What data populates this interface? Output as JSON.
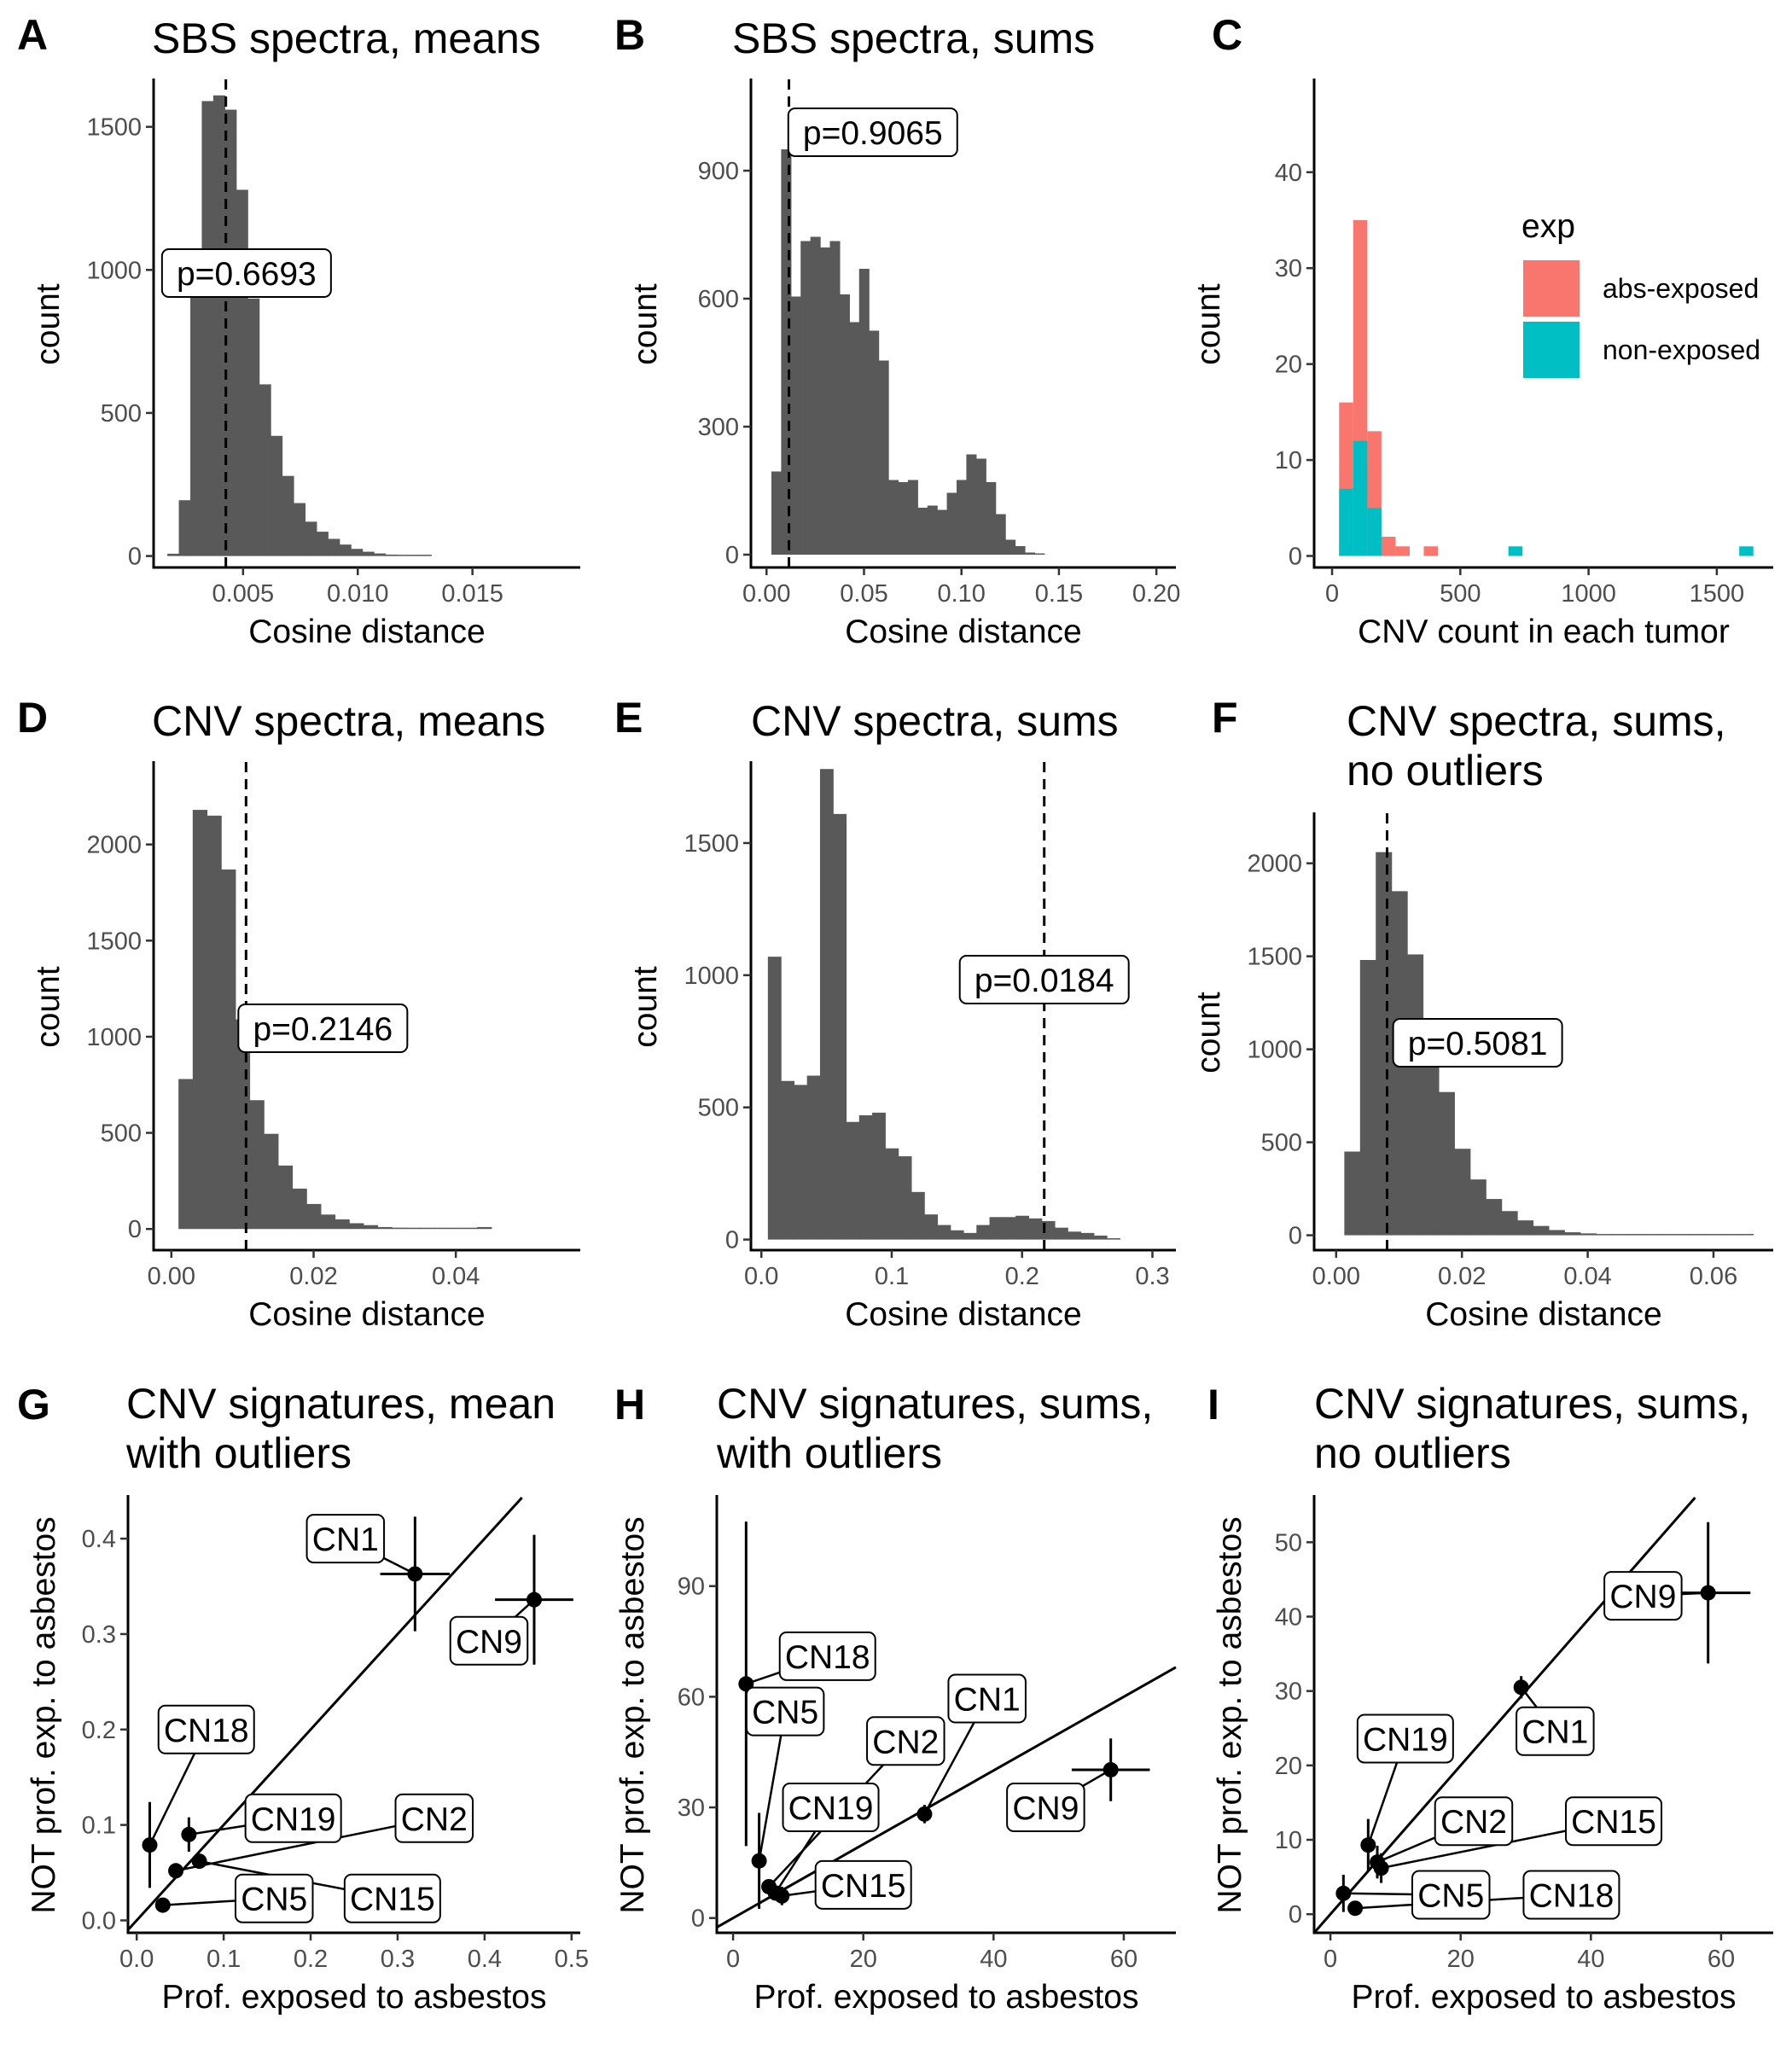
{
  "colors": {
    "bar": "#595959",
    "exposed": "#F8766D",
    "nonexposed": "#00BFC4",
    "axis": "#000000",
    "tick_text": "#4d4d4d"
  },
  "chart_data": [
    {
      "id": "A",
      "type": "bar",
      "label": "A",
      "title": [
        "SBS spectra, means"
      ],
      "xlabel": "Cosine distance",
      "ylabel": "count",
      "xlim": [
        0.0011,
        0.0197
      ],
      "ylim": [
        -40,
        1660
      ],
      "xticks": [
        0.005,
        0.01,
        0.015
      ],
      "xtick_labels": [
        "0.005",
        "0.010",
        "0.015"
      ],
      "yticks": [
        0,
        500,
        1000,
        1500
      ],
      "ytick_labels": [
        "0",
        "500",
        "1000",
        "1500"
      ],
      "bin_start": 0.0017,
      "bin_width": 0.0005,
      "values": [
        8,
        195,
        1020,
        1590,
        1610,
        1560,
        1280,
        900,
        600,
        420,
        280,
        185,
        120,
        85,
        60,
        40,
        25,
        15,
        9,
        5,
        3,
        2,
        1
      ],
      "vline": 0.00425,
      "pvalue_label": "p=0.6693",
      "pvalue_pos": [
        0.00515,
        1000
      ]
    },
    {
      "id": "B",
      "type": "bar",
      "label": "B",
      "title": [
        "SBS spectra, sums"
      ],
      "xlabel": "Cosine distance",
      "ylabel": "count",
      "xlim": [
        -0.008,
        0.21
      ],
      "ylim": [
        -30,
        1110
      ],
      "xticks": [
        0.0,
        0.05,
        0.1,
        0.15,
        0.2
      ],
      "xtick_labels": [
        "0.00",
        "0.05",
        "0.10",
        "0.15",
        "0.20"
      ],
      "yticks": [
        0,
        300,
        600,
        900
      ],
      "ytick_labels": [
        "0",
        "300",
        "600",
        "900"
      ],
      "bin_start": 0.0025,
      "bin_width": 0.005,
      "values": [
        195,
        950,
        605,
        735,
        745,
        720,
        735,
        610,
        545,
        670,
        525,
        455,
        175,
        170,
        175,
        110,
        115,
        105,
        145,
        175,
        235,
        225,
        170,
        95,
        35,
        20,
        5,
        2
      ],
      "vline": 0.0115,
      "pvalue_label": "p=0.9065",
      "pvalue_pos": [
        0.0545,
        1000
      ]
    },
    {
      "id": "C",
      "type": "bar",
      "label": "C",
      "title": [],
      "xlabel": "CNV count in each tumor",
      "ylabel": "count",
      "xlim": [
        -70,
        1720
      ],
      "ylim": [
        -1.2,
        49.5
      ],
      "xticks": [
        0,
        500,
        1000,
        1500
      ],
      "xtick_labels": [
        "0",
        "500",
        "1000",
        "1500"
      ],
      "yticks": [
        0,
        10,
        20,
        30,
        40
      ],
      "ytick_labels": [
        "0",
        "10",
        "20",
        "30",
        "40"
      ],
      "categories_x": [
        55,
        110,
        165,
        220,
        275,
        385,
        715,
        1615
      ],
      "bin_width": 55,
      "series": [
        {
          "name": "abs-exposed",
          "values": [
            16,
            35,
            13,
            2,
            1,
            1,
            0,
            0
          ]
        },
        {
          "name": "non-exposed",
          "values": [
            7,
            12,
            5,
            0,
            0,
            0,
            1,
            1
          ]
        }
      ],
      "legend": {
        "title": "exp",
        "position": "right"
      }
    },
    {
      "id": "D",
      "type": "bar",
      "label": "D",
      "title": [
        "CNV spectra, means"
      ],
      "xlabel": "Cosine distance",
      "ylabel": "count",
      "xlim": [
        -0.0025,
        0.0575
      ],
      "ylim": [
        -110,
        2420
      ],
      "xticks": [
        0.0,
        0.02,
        0.04
      ],
      "xtick_labels": [
        "0.00",
        "0.02",
        "0.04"
      ],
      "yticks": [
        0,
        500,
        1000,
        1500,
        2000
      ],
      "ytick_labels": [
        "0",
        "500",
        "1000",
        "1500",
        "2000"
      ],
      "bin_start": 0.001,
      "bin_width": 0.002,
      "values": [
        780,
        2180,
        2150,
        1870,
        1090,
        670,
        495,
        330,
        210,
        130,
        75,
        50,
        30,
        20,
        10,
        7,
        5,
        3,
        2,
        1,
        1,
        10
      ],
      "vline": 0.0105,
      "pvalue_label": "p=0.2146",
      "pvalue_pos": [
        0.0213,
        1000
      ]
    },
    {
      "id": "E",
      "type": "bar",
      "label": "E",
      "title": [
        "CNV spectra, sums"
      ],
      "xlabel": "Cosine distance",
      "ylabel": "count",
      "xlim": [
        -0.008,
        0.318
      ],
      "ylim": [
        -40,
        1800
      ],
      "xticks": [
        0.0,
        0.1,
        0.2,
        0.3
      ],
      "xtick_labels": [
        "0.0",
        "0.1",
        "0.2",
        "0.3"
      ],
      "bin_start": 0.005,
      "bin_width": 0.01,
      "yticks": [
        0,
        500,
        1000,
        1500
      ],
      "ytick_labels": [
        "0",
        "500",
        "1000",
        "1500"
      ],
      "values": [
        1070,
        600,
        585,
        620,
        1780,
        1610,
        445,
        470,
        480,
        345,
        315,
        180,
        95,
        55,
        35,
        25,
        55,
        85,
        85,
        90,
        80,
        70,
        45,
        30,
        25,
        15,
        5
      ],
      "vline": 0.217,
      "pvalue_label": "p=0.0184",
      "pvalue_pos": [
        0.217,
        1000
      ]
    },
    {
      "id": "F",
      "type": "bar",
      "label": "F",
      "title": [
        "CNV spectra, sums,",
        "no outliers"
      ],
      "xlabel": "Cosine distance",
      "ylabel": "count",
      "xlim": [
        -0.0035,
        0.0695
      ],
      "ylim": [
        -80,
        2260
      ],
      "xticks": [
        0.0,
        0.02,
        0.04,
        0.06
      ],
      "xtick_labels": [
        "0.00",
        "0.02",
        "0.04",
        "0.06"
      ],
      "yticks": [
        0,
        500,
        1000,
        1500,
        2000
      ],
      "ytick_labels": [
        "0",
        "500",
        "1000",
        "1500",
        "2000"
      ],
      "bin_start": 0.0013,
      "bin_width": 0.0025,
      "values": [
        450,
        1480,
        2060,
        1850,
        1510,
        1120,
        770,
        465,
        300,
        195,
        130,
        80,
        50,
        28,
        16,
        10,
        6,
        4,
        2,
        1,
        1,
        0,
        1,
        1,
        1,
        1
      ],
      "vline": 0.0081,
      "pvalue_label": "p=0.5081",
      "pvalue_pos": [
        0.0225,
        1000
      ]
    },
    {
      "id": "G",
      "type": "scatter",
      "label": "G",
      "title": [
        "CNV signatures, mean",
        "with outliers"
      ],
      "xlabel": "Prof. exposed to asbestos",
      "ylabel": "NOT prof. exp. to asbestos",
      "xlim": [
        -0.01,
        0.51
      ],
      "ylim": [
        -0.013,
        0.443
      ],
      "xticks": [
        0.0,
        0.1,
        0.2,
        0.3,
        0.4,
        0.5
      ],
      "xtick_labels": [
        "0.0",
        "0.1",
        "0.2",
        "0.3",
        "0.4",
        "0.5"
      ],
      "yticks": [
        0.0,
        0.1,
        0.2,
        0.3,
        0.4
      ],
      "ytick_labels": [
        "0.0",
        "0.1",
        "0.2",
        "0.3",
        "0.4"
      ],
      "diagonal": true,
      "points": [
        {
          "name": "CN1",
          "x": 0.32,
          "y": 0.363,
          "xerr": 0.04,
          "yerr": 0.06,
          "label_pos": [
            0.24,
            0.4
          ]
        },
        {
          "name": "CN9",
          "x": 0.457,
          "y": 0.336,
          "xerr": 0.045,
          "yerr": 0.068,
          "label_pos": [
            0.405,
            0.293
          ]
        },
        {
          "name": "CN18",
          "x": 0.015,
          "y": 0.079,
          "xerr": 0.0,
          "yerr": 0.045,
          "label_pos": [
            0.08,
            0.2
          ]
        },
        {
          "name": "CN19",
          "x": 0.06,
          "y": 0.09,
          "xerr": 0.0,
          "yerr": 0.018,
          "label_pos": [
            0.18,
            0.107
          ]
        },
        {
          "name": "CN2",
          "x": 0.045,
          "y": 0.052,
          "xerr": 0.0,
          "yerr": 0.0,
          "label_pos": [
            0.342,
            0.107
          ]
        },
        {
          "name": "CN5",
          "x": 0.03,
          "y": 0.016,
          "xerr": 0.0,
          "yerr": 0.0,
          "label_pos": [
            0.158,
            0.023
          ]
        },
        {
          "name": "CN15",
          "x": 0.072,
          "y": 0.062,
          "xerr": 0.0,
          "yerr": 0.0,
          "label_pos": [
            0.294,
            0.023
          ]
        }
      ]
    },
    {
      "id": "H",
      "type": "scatter",
      "label": "H",
      "title": [
        "CNV signatures, sums,",
        "with outliers"
      ],
      "xlabel": "Prof. exposed to asbestos",
      "ylabel": "NOT prof. exp. to asbestos",
      "xlim": [
        -2.5,
        68
      ],
      "ylim": [
        -4,
        114
      ],
      "xticks": [
        0,
        20,
        40,
        60
      ],
      "xtick_labels": [
        "0",
        "20",
        "40",
        "60"
      ],
      "yticks": [
        0,
        30,
        60,
        90
      ],
      "ytick_labels": [
        "0",
        "30",
        "60",
        "90"
      ],
      "diagonal": true,
      "points": [
        {
          "name": "CN18",
          "x": 2.0,
          "y": 63.5,
          "xerr": 0.0,
          "yerr": 44,
          "label_pos": [
            14.5,
            71
          ]
        },
        {
          "name": "CN1",
          "x": 29.4,
          "y": 28.2,
          "xerr": 0.0,
          "yerr": 2.5,
          "label_pos": [
            39,
            59.5
          ]
        },
        {
          "name": "CN5",
          "x": 4.0,
          "y": 15.5,
          "xerr": 0.0,
          "yerr": 13,
          "label_pos": [
            8,
            56
          ]
        },
        {
          "name": "CN2",
          "x": 5.5,
          "y": 8.5,
          "xerr": 0.0,
          "yerr": 0.0,
          "label_pos": [
            26.5,
            48
          ]
        },
        {
          "name": "CN19",
          "x": 6.5,
          "y": 6.8,
          "xerr": 0.0,
          "yerr": 0.0,
          "label_pos": [
            15,
            30
          ]
        },
        {
          "name": "CN15",
          "x": 7.5,
          "y": 6.0,
          "xerr": 0.0,
          "yerr": 2.5,
          "label_pos": [
            20,
            9
          ]
        },
        {
          "name": "CN9",
          "x": 58.0,
          "y": 40.2,
          "xerr": 6.0,
          "yerr": 8.5,
          "label_pos": [
            48,
            30
          ]
        }
      ]
    },
    {
      "id": "I",
      "type": "scatter",
      "label": "I",
      "title": [
        "CNV signatures, sums,",
        "no outliers"
      ],
      "xlabel": "Prof. exposed to asbestos",
      "ylabel": "NOT prof. exp. to asbestos",
      "xlim": [
        -2.5,
        68
      ],
      "ylim": [
        -2.5,
        56
      ],
      "xticks": [
        0,
        20,
        40,
        60
      ],
      "xtick_labels": [
        "0",
        "20",
        "40",
        "60"
      ],
      "yticks": [
        0,
        10,
        20,
        30,
        40,
        50
      ],
      "ytick_labels": [
        "0",
        "10",
        "20",
        "30",
        "40",
        "50"
      ],
      "diagonal": true,
      "points": [
        {
          "name": "CN9",
          "x": 58.0,
          "y": 43.2,
          "xerr": 6.5,
          "yerr": 9.5,
          "label_pos": [
            48,
            42.8
          ]
        },
        {
          "name": "CN1",
          "x": 29.3,
          "y": 30.5,
          "xerr": 0.0,
          "yerr": 1.5,
          "label_pos": [
            34.5,
            24.6
          ]
        },
        {
          "name": "CN19",
          "x": 5.8,
          "y": 9.3,
          "xerr": 0.0,
          "yerr": 3.5,
          "label_pos": [
            11.5,
            23.6
          ]
        },
        {
          "name": "CN2",
          "x": 7.2,
          "y": 7.0,
          "xerr": 0.0,
          "yerr": 2.2,
          "label_pos": [
            22,
            12.5
          ]
        },
        {
          "name": "CN15",
          "x": 7.8,
          "y": 6.2,
          "xerr": 0.0,
          "yerr": 2.0,
          "label_pos": [
            43.5,
            12.5
          ]
        },
        {
          "name": "CN5",
          "x": 2.0,
          "y": 2.8,
          "xerr": 0.0,
          "yerr": 2.5,
          "label_pos": [
            18.5,
            2.6
          ]
        },
        {
          "name": "CN18",
          "x": 3.8,
          "y": 0.8,
          "xerr": 0.0,
          "yerr": 0.0,
          "label_pos": [
            37,
            2.6
          ]
        }
      ]
    }
  ]
}
